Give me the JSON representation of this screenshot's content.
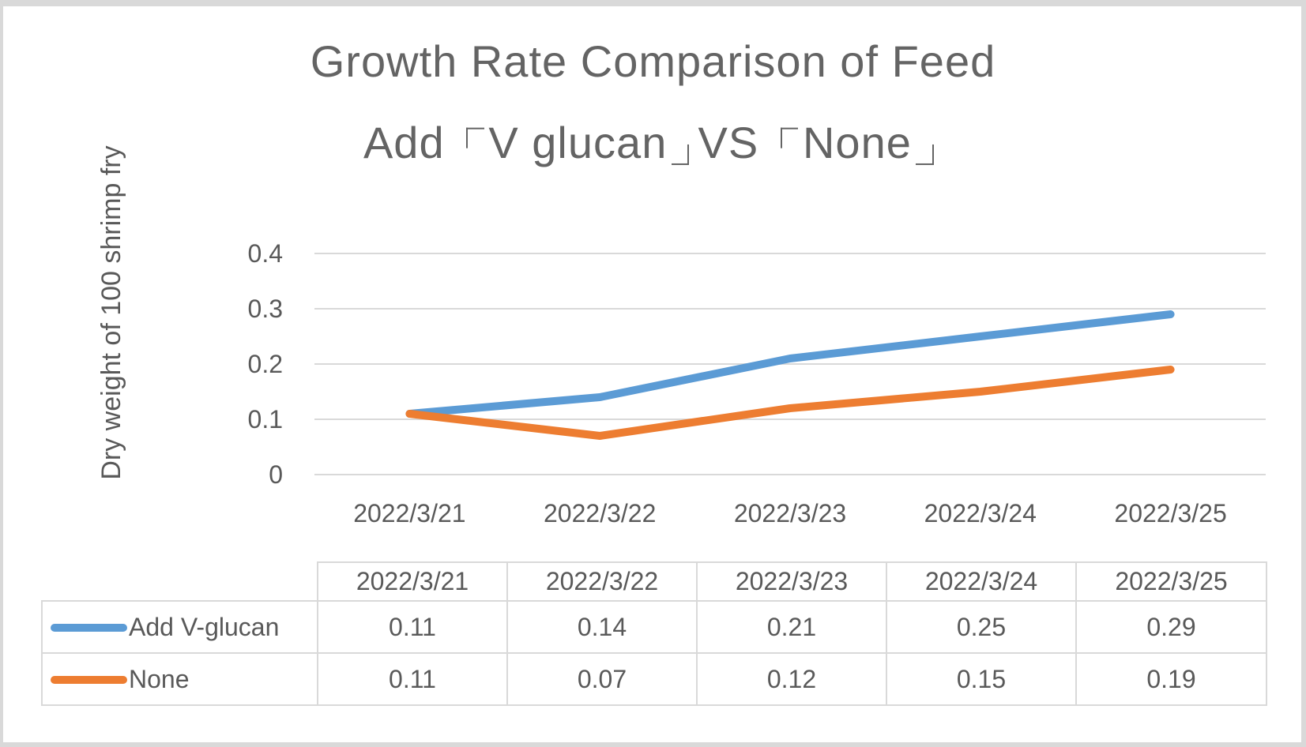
{
  "chart_data": {
    "type": "line",
    "title_lines": [
      "Growth Rate Comparison of Feed",
      "Add 「V glucan」VS 「None」"
    ],
    "ylabel": "Dry weight of 100 shrimp fry",
    "xlabel": "",
    "categories": [
      "2022/3/21",
      "2022/3/22",
      "2022/3/23",
      "2022/3/24",
      "2022/3/25"
    ],
    "series": [
      {
        "name": "Add V-glucan",
        "color": "#5B9BD5",
        "values": [
          0.11,
          0.14,
          0.21,
          0.25,
          0.29
        ]
      },
      {
        "name": "None",
        "color": "#ED7D31",
        "values": [
          0.11,
          0.07,
          0.12,
          0.15,
          0.19
        ]
      }
    ],
    "ylim": [
      0,
      0.4
    ],
    "yticks": [
      0,
      0.1,
      0.2,
      0.3,
      0.4
    ],
    "grid": true,
    "legend_position": "data-table-left",
    "data_table_shown": true,
    "colors": {
      "text": "#595959",
      "title_text": "#646464",
      "gridline": "#D9D9D9",
      "table_border": "#D9D9D9",
      "background": "#FFFFFF",
      "frame_border": "#D9D9D9"
    }
  }
}
